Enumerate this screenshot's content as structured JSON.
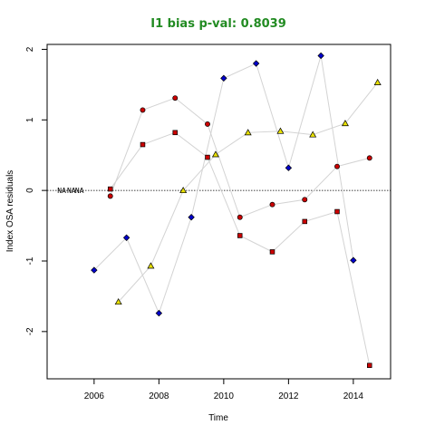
{
  "chart_data": {
    "type": "scatter",
    "title": "I1 bias p-val: 0.8039",
    "xlabel": "Time",
    "ylabel": "Index OSA residuals",
    "xlim": [
      2004.55,
      2015.15
    ],
    "ylim": [
      -2.67,
      2.07
    ],
    "x_ticks": [
      2006,
      2008,
      2010,
      2012,
      2014
    ],
    "y_ticks": [
      -2,
      -1,
      0,
      1,
      2
    ],
    "reference_line": 0,
    "grid": false,
    "colors": {
      "title": "#228B22",
      "line": "#d3d3d3",
      "blue": "#0000CD",
      "red": "#CC0000",
      "yellow": "#E8E000"
    },
    "na_labels": [
      {
        "text": "NA",
        "x": 2005.0,
        "y": 0
      },
      {
        "text": "NA",
        "x": 2005.3,
        "y": 0
      },
      {
        "text": "NA",
        "x": 2005.55,
        "y": 0
      }
    ],
    "series": [
      {
        "marker": "diamond",
        "color": "#0000CD",
        "x": [
          2006.0,
          2007.0,
          2008.0,
          2009.0,
          2010.0,
          2011.0,
          2012.0,
          2013.0,
          2014.0
        ],
        "y": [
          -1.13,
          -0.67,
          -1.74,
          -0.38,
          1.59,
          1.8,
          0.32,
          1.91,
          -0.99
        ]
      },
      {
        "marker": "circle",
        "color": "#CC0000",
        "x": [
          2006.5,
          2007.5,
          2008.5,
          2009.5,
          2010.5,
          2011.5,
          2012.5,
          2013.5,
          2014.5
        ],
        "y": [
          -0.08,
          1.14,
          1.31,
          0.94,
          -0.38,
          -0.2,
          -0.13,
          0.34,
          0.46
        ]
      },
      {
        "marker": "square",
        "color": "#CC0000",
        "x": [
          2006.5,
          2007.5,
          2008.5,
          2009.5,
          2010.5,
          2011.5,
          2012.5,
          2013.5,
          2014.5
        ],
        "y": [
          0.02,
          0.65,
          0.82,
          0.47,
          -0.64,
          -0.87,
          -0.44,
          -0.3,
          -2.48
        ]
      },
      {
        "marker": "triangle",
        "color": "#E8E000",
        "x": [
          2006.75,
          2007.75,
          2008.75,
          2009.75,
          2010.75,
          2011.75,
          2012.75,
          2013.75,
          2014.75
        ],
        "y": [
          -1.58,
          -1.07,
          0.0,
          0.51,
          0.82,
          0.84,
          0.79,
          0.95,
          1.53
        ]
      }
    ]
  }
}
